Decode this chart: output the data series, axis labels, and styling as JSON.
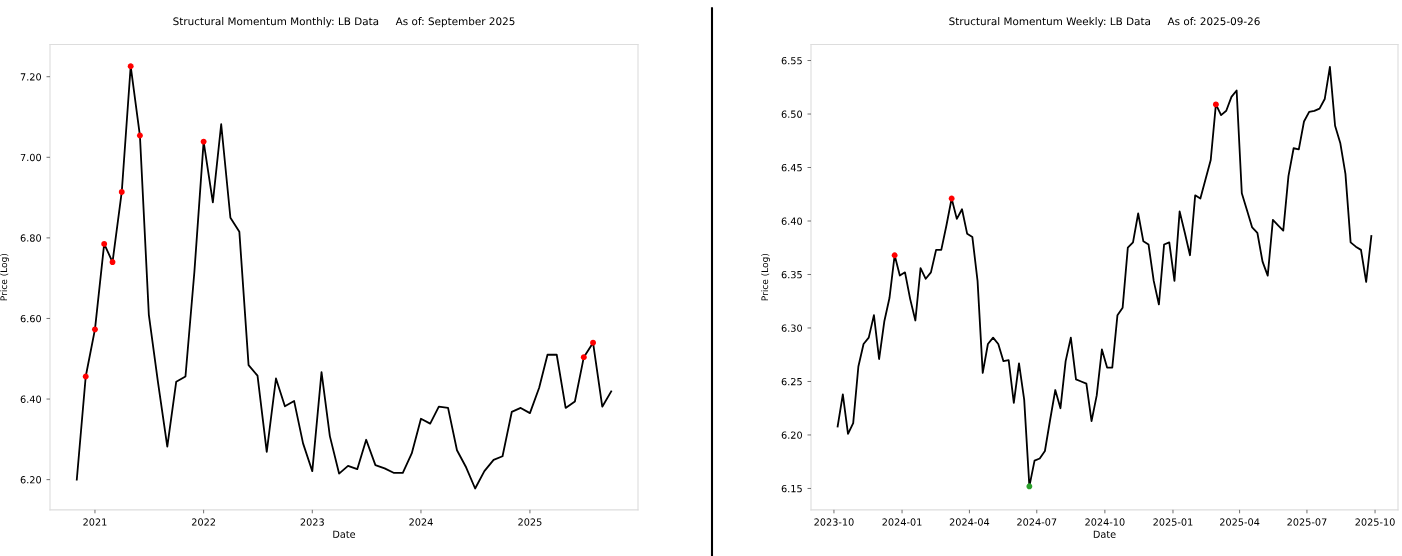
{
  "chart_data": [
    {
      "type": "line",
      "title": "Structural Momentum Monthly: LB Data     As of: September 2025",
      "xlabel": "Date",
      "ylabel": "Price (Log)",
      "xlim": [
        "2020-08-03",
        "2025-12-30"
      ],
      "ylim": [
        6.125,
        7.28
      ],
      "xticks": [
        "2021",
        "2022",
        "2023",
        "2024",
        "2025"
      ],
      "yticks": [
        {
          "value": 6.2,
          "label": "6.20"
        },
        {
          "value": 6.4,
          "label": "6.40"
        },
        {
          "value": 6.6,
          "label": "6.60"
        },
        {
          "value": 6.8,
          "label": "6.80"
        },
        {
          "value": 7.0,
          "label": "7.00"
        },
        {
          "value": 7.2,
          "label": "7.20"
        }
      ],
      "grid": false,
      "series": [
        {
          "color": "#000000",
          "x": [
            "2020-11",
            "2020-12",
            "2021-01",
            "2021-02",
            "2021-03",
            "2021-04",
            "2021-05",
            "2021-06",
            "2021-07",
            "2021-08",
            "2021-09",
            "2021-10",
            "2021-11",
            "2021-12",
            "2022-01",
            "2022-02",
            "2022-03",
            "2022-04",
            "2022-05",
            "2022-06",
            "2022-07",
            "2022-08",
            "2022-09",
            "2022-10",
            "2022-11",
            "2022-12",
            "2023-01",
            "2023-02",
            "2023-03",
            "2023-04",
            "2023-05",
            "2023-06",
            "2023-07",
            "2023-08",
            "2023-09",
            "2023-10",
            "2023-11",
            "2023-12",
            "2024-01",
            "2024-02",
            "2024-03",
            "2024-04",
            "2024-05",
            "2024-06",
            "2024-07",
            "2024-08",
            "2024-09",
            "2024-10",
            "2024-11",
            "2024-12",
            "2025-01",
            "2025-02",
            "2025-03",
            "2025-04",
            "2025-05",
            "2025-06",
            "2025-07",
            "2025-08",
            "2025-09",
            "2025-10"
          ],
          "values": [
            6.2,
            6.456,
            6.573,
            6.785,
            6.74,
            6.914,
            7.226,
            7.054,
            6.609,
            6.44,
            6.282,
            6.443,
            6.456,
            6.716,
            7.039,
            6.888,
            7.082,
            6.85,
            6.815,
            6.484,
            6.458,
            6.269,
            6.451,
            6.382,
            6.395,
            6.29,
            6.221,
            6.467,
            6.308,
            6.215,
            6.234,
            6.226,
            6.299,
            6.236,
            6.228,
            6.217,
            6.217,
            6.265,
            6.351,
            6.339,
            6.381,
            6.378,
            6.273,
            6.23,
            6.178,
            6.221,
            6.249,
            6.258,
            6.368,
            6.378,
            6.365,
            6.428,
            6.51,
            6.51,
            6.378,
            6.394,
            6.504,
            6.54,
            6.381,
            6.419
          ]
        },
        {
          "type": "scatter",
          "color": "#ff0000",
          "x": [
            "2020-12",
            "2021-01",
            "2021-02",
            "2021-03",
            "2021-04",
            "2021-05",
            "2021-06",
            "2022-01",
            "2025-07",
            "2025-08"
          ],
          "values": [
            6.456,
            6.573,
            6.785,
            6.74,
            6.914,
            7.226,
            7.054,
            7.039,
            6.504,
            6.54
          ]
        }
      ]
    },
    {
      "type": "line",
      "title": "Structural Momentum Weekly: LB Data     As of: 2025-09-26",
      "xlabel": "Date",
      "ylabel": "Price (Log)",
      "xlim": [
        "2023-08-31",
        "2025-11-01"
      ],
      "ylim": [
        6.13,
        6.565
      ],
      "xticks": [
        "2023-10",
        "2024-01",
        "2024-04",
        "2024-07",
        "2024-10",
        "2025-01",
        "2025-04",
        "2025-07",
        "2025-10"
      ],
      "yticks": [
        {
          "value": 6.15,
          "label": "6.15"
        },
        {
          "value": 6.2,
          "label": "6.20"
        },
        {
          "value": 6.25,
          "label": "6.25"
        },
        {
          "value": 6.3,
          "label": "6.30"
        },
        {
          "value": 6.35,
          "label": "6.35"
        },
        {
          "value": 6.4,
          "label": "6.40"
        },
        {
          "value": 6.45,
          "label": "6.45"
        },
        {
          "value": 6.5,
          "label": "6.50"
        },
        {
          "value": 6.55,
          "label": "6.55"
        }
      ],
      "grid": false,
      "series": [
        {
          "color": "#000000",
          "x": [
            "2023-10-06",
            "2023-10-13",
            "2023-10-20",
            "2023-10-27",
            "2023-11-03",
            "2023-11-10",
            "2023-11-17",
            "2023-11-24",
            "2023-12-01",
            "2023-12-08",
            "2023-12-15",
            "2023-12-22",
            "2023-12-29",
            "2024-01-05",
            "2024-01-12",
            "2024-01-19",
            "2024-01-26",
            "2024-02-02",
            "2024-02-09",
            "2024-02-16",
            "2024-02-23",
            "2024-03-01",
            "2024-03-08",
            "2024-03-15",
            "2024-03-22",
            "2024-03-29",
            "2024-04-05",
            "2024-04-12",
            "2024-04-19",
            "2024-04-26",
            "2024-05-03",
            "2024-05-10",
            "2024-05-17",
            "2024-05-24",
            "2024-05-31",
            "2024-06-07",
            "2024-06-14",
            "2024-06-21",
            "2024-06-28",
            "2024-07-05",
            "2024-07-12",
            "2024-07-19",
            "2024-07-26",
            "2024-08-02",
            "2024-08-09",
            "2024-08-16",
            "2024-08-23",
            "2024-08-30",
            "2024-09-06",
            "2024-09-13",
            "2024-09-20",
            "2024-09-27",
            "2024-10-04",
            "2024-10-11",
            "2024-10-18",
            "2024-10-25",
            "2024-11-01",
            "2024-11-08",
            "2024-11-15",
            "2024-11-22",
            "2024-11-29",
            "2024-12-06",
            "2024-12-13",
            "2024-12-20",
            "2024-12-27",
            "2025-01-03",
            "2025-01-10",
            "2025-01-17",
            "2025-01-24",
            "2025-01-31",
            "2025-02-07",
            "2025-02-14",
            "2025-02-21",
            "2025-02-28",
            "2025-03-07",
            "2025-03-14",
            "2025-03-21",
            "2025-03-28",
            "2025-04-04",
            "2025-04-11",
            "2025-04-18",
            "2025-04-25",
            "2025-05-02",
            "2025-05-09",
            "2025-05-16",
            "2025-05-23",
            "2025-05-30",
            "2025-06-06",
            "2025-06-13",
            "2025-06-20",
            "2025-06-27",
            "2025-07-04",
            "2025-07-11",
            "2025-07-18",
            "2025-07-25",
            "2025-08-01",
            "2025-08-08",
            "2025-08-15",
            "2025-08-22",
            "2025-08-29",
            "2025-09-05",
            "2025-09-12",
            "2025-09-19",
            "2025-09-26"
          ],
          "values": [
            6.208,
            6.238,
            6.201,
            6.211,
            6.264,
            6.285,
            6.291,
            6.312,
            6.271,
            6.306,
            6.328,
            6.368,
            6.349,
            6.352,
            6.327,
            6.307,
            6.356,
            6.346,
            6.352,
            6.373,
            6.373,
            6.396,
            6.421,
            6.402,
            6.411,
            6.388,
            6.385,
            6.344,
            6.258,
            6.285,
            6.291,
            6.285,
            6.269,
            6.27,
            6.23,
            6.267,
            6.233,
            6.152,
            6.176,
            6.178,
            6.185,
            6.214,
            6.242,
            6.225,
            6.269,
            6.291,
            6.252,
            6.25,
            6.248,
            6.213,
            6.237,
            6.28,
            6.263,
            6.263,
            6.312,
            6.319,
            6.375,
            6.38,
            6.407,
            6.381,
            6.378,
            6.344,
            6.322,
            6.378,
            6.38,
            6.344,
            6.409,
            6.389,
            6.368,
            6.424,
            6.421,
            6.439,
            6.457,
            6.509,
            6.499,
            6.503,
            6.516,
            6.522,
            6.426,
            6.41,
            6.394,
            6.389,
            6.362,
            6.349,
            6.401,
            6.396,
            6.391,
            6.442,
            6.468,
            6.467,
            6.493,
            6.502,
            6.503,
            6.505,
            6.514,
            6.544,
            6.489,
            6.473,
            6.444,
            6.38,
            6.376,
            6.373,
            6.343,
            6.386
          ]
        },
        {
          "type": "scatter",
          "color": "#ff0000",
          "x": [
            "2023-12-22",
            "2024-03-08",
            "2025-02-28"
          ],
          "values": [
            6.368,
            6.421,
            6.509
          ]
        },
        {
          "type": "scatter",
          "color": "#2ca02c",
          "x": [
            "2024-06-21"
          ],
          "values": [
            6.152
          ]
        }
      ]
    }
  ]
}
